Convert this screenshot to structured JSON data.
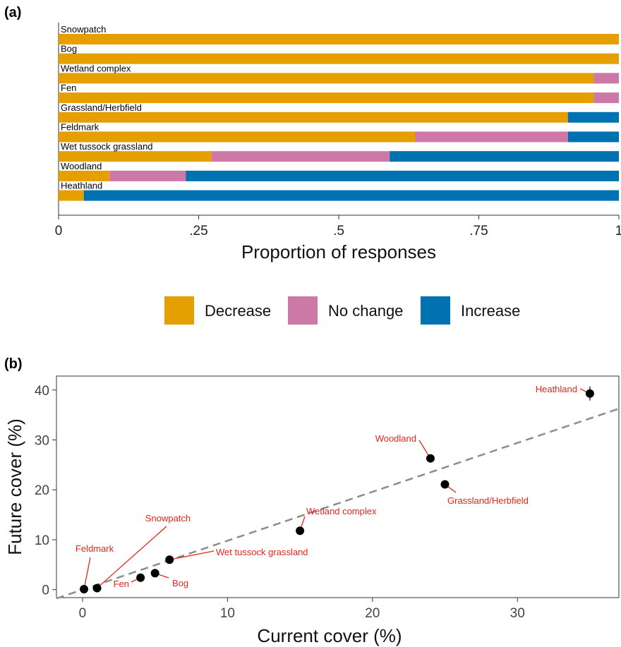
{
  "panel_a": {
    "panel_label": "(a)",
    "chart_data": {
      "type": "bar",
      "orientation": "horizontal",
      "stacked": true,
      "categories": [
        "Snowpatch",
        "Bog",
        "Wetland complex",
        "Fen",
        "Grassland/Herbfield",
        "Feldmark",
        "Wet tussock grassland",
        "Woodland",
        "Heathland"
      ],
      "series": [
        {
          "name": "Decrease",
          "color": "#E69F00",
          "values": [
            1.0,
            1.0,
            0.955,
            0.955,
            0.909,
            0.636,
            0.273,
            0.091,
            0.045
          ]
        },
        {
          "name": "No change",
          "color": "#CC79A7",
          "values": [
            0.0,
            0.0,
            0.045,
            0.045,
            0.0,
            0.273,
            0.318,
            0.136,
            0.0
          ]
        },
        {
          "name": "Increase",
          "color": "#0072B2",
          "values": [
            0.0,
            0.0,
            0.0,
            0.0,
            0.091,
            0.091,
            0.409,
            0.773,
            0.955
          ]
        }
      ],
      "xlabel": "Proportion of responses",
      "xlim": [
        0,
        1
      ],
      "ticks": [
        0,
        0.25,
        0.5,
        0.75,
        1
      ],
      "tick_labels": [
        "0",
        ".25",
        ".5",
        ".75",
        "1"
      ],
      "legend_position": "bottom"
    }
  },
  "panel_b": {
    "panel_label": "(b)",
    "chart_data": {
      "type": "scatter",
      "points": [
        {
          "label": "Feldmark",
          "x": 0.1,
          "y": 0.1
        },
        {
          "label": "Snowpatch",
          "x": 1.0,
          "y": 0.3
        },
        {
          "label": "Fen",
          "x": 4.0,
          "y": 2.4
        },
        {
          "label": "Bog",
          "x": 5.0,
          "y": 3.3
        },
        {
          "label": "Wet tussock grassland",
          "x": 6.0,
          "y": 6.0
        },
        {
          "label": "Wetland complex",
          "x": 15.0,
          "y": 11.8
        },
        {
          "label": "Woodland",
          "x": 24.0,
          "y": 26.3
        },
        {
          "label": "Grassland/Herbfield",
          "x": 25.0,
          "y": 21.1
        },
        {
          "label": "Heathland",
          "x": 35.0,
          "y": 39.3
        }
      ],
      "trend_line": {
        "style": "dashed",
        "color": "#8c8c8c",
        "slope": 0.98,
        "intercept": 0.0
      },
      "xlabel": "Current cover (%)",
      "ylabel": "Future cover (%)",
      "xlim": [
        -1.8,
        37
      ],
      "ylim": [
        -1.6,
        42.8
      ],
      "xticks": [
        0,
        10,
        20,
        30
      ],
      "yticks": [
        0,
        10,
        20,
        30,
        40
      ],
      "grid": false,
      "point_color": "#000000",
      "annotation_color": "#e8251c"
    }
  }
}
